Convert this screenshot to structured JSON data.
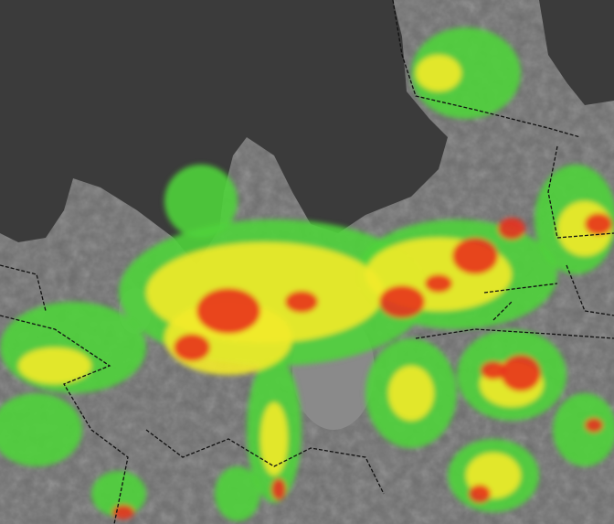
{
  "map": {
    "colors": {
      "sea": "#3b3b3b",
      "land": "#6e6e6e",
      "lake": "#8a8a8a",
      "heat_low": "#4fd33a",
      "heat_mid": "#f2ea2a",
      "heat_high": "#e8321e",
      "boundary": "#111111"
    }
  }
}
